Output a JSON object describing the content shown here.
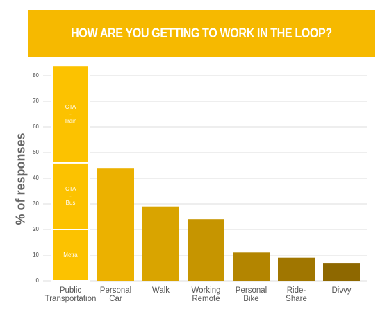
{
  "chart_data": {
    "type": "stacked_bar",
    "title": "HOW ARE YOU GETTING TO WORK IN THE LOOP?",
    "y_label": "% of responses",
    "categories": [
      "Public Transportation",
      "Personal Car",
      "Walk",
      "Working Remote",
      "Personal Bike",
      "Ride-Share",
      "Divvy"
    ],
    "values": [
      null,
      44,
      29,
      24,
      11,
      9,
      7
    ],
    "colors": [
      "#fcc200",
      "#ebb100",
      "#d9a400",
      "#c69500",
      "#b38500",
      "#a07600",
      "#8e6800"
    ],
    "segments": [
      {
        "name": "Metra",
        "values": [
          20,
          null,
          null,
          null,
          null,
          null,
          null
        ]
      },
      {
        "name": "CTA - Bus",
        "values": [
          26,
          null,
          null,
          null,
          null,
          null,
          null
        ]
      },
      {
        "name": "CTA - Train",
        "values": [
          38,
          null,
          null,
          null,
          null,
          null,
          null
        ]
      }
    ],
    "ylim": [
      0,
      85
    ],
    "yticks": [
      0,
      10,
      20,
      30,
      40,
      50,
      60,
      70,
      80
    ],
    "grid": true
  }
}
